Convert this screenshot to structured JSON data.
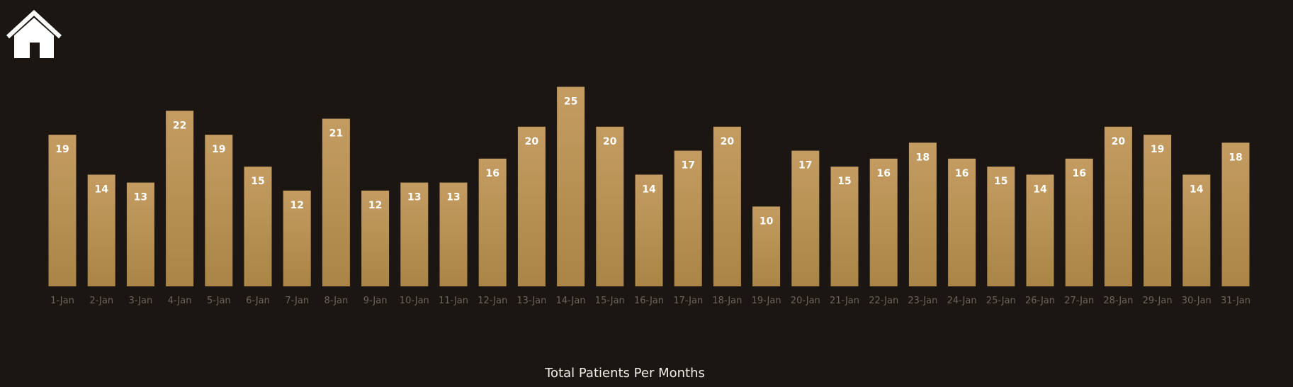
{
  "home_icon": "home-icon",
  "colors": {
    "background": "#1b1612",
    "bar_top": "#c49c62",
    "bar_bottom": "#aa8545",
    "bar_label": "#ffffff",
    "tick_label": "#6b645d",
    "caption": "#f2efe9",
    "icon": "#ffffff"
  },
  "chart_data": {
    "type": "bar",
    "title": "Total Patients Per Months",
    "xlabel": "",
    "ylabel": "",
    "grid": false,
    "legend": "none",
    "ylim": [
      0,
      25
    ],
    "categories": [
      "1-Jan",
      "2-Jan",
      "3-Jan",
      "4-Jan",
      "5-Jan",
      "6-Jan",
      "7-Jan",
      "8-Jan",
      "9-Jan",
      "10-Jan",
      "11-Jan",
      "12-Jan",
      "13-Jan",
      "14-Jan",
      "15-Jan",
      "16-Jan",
      "17-Jan",
      "18-Jan",
      "19-Jan",
      "20-Jan",
      "21-Jan",
      "22-Jan",
      "23-Jan",
      "24-Jan",
      "25-Jan",
      "26-Jan",
      "27-Jan",
      "28-Jan",
      "29-Jan",
      "30-Jan",
      "31-Jan"
    ],
    "values": [
      19,
      14,
      13,
      22,
      19,
      15,
      12,
      21,
      12,
      13,
      13,
      16,
      20,
      25,
      20,
      14,
      17,
      20,
      10,
      17,
      15,
      16,
      18,
      16,
      15,
      14,
      16,
      20,
      19,
      14,
      18
    ]
  }
}
